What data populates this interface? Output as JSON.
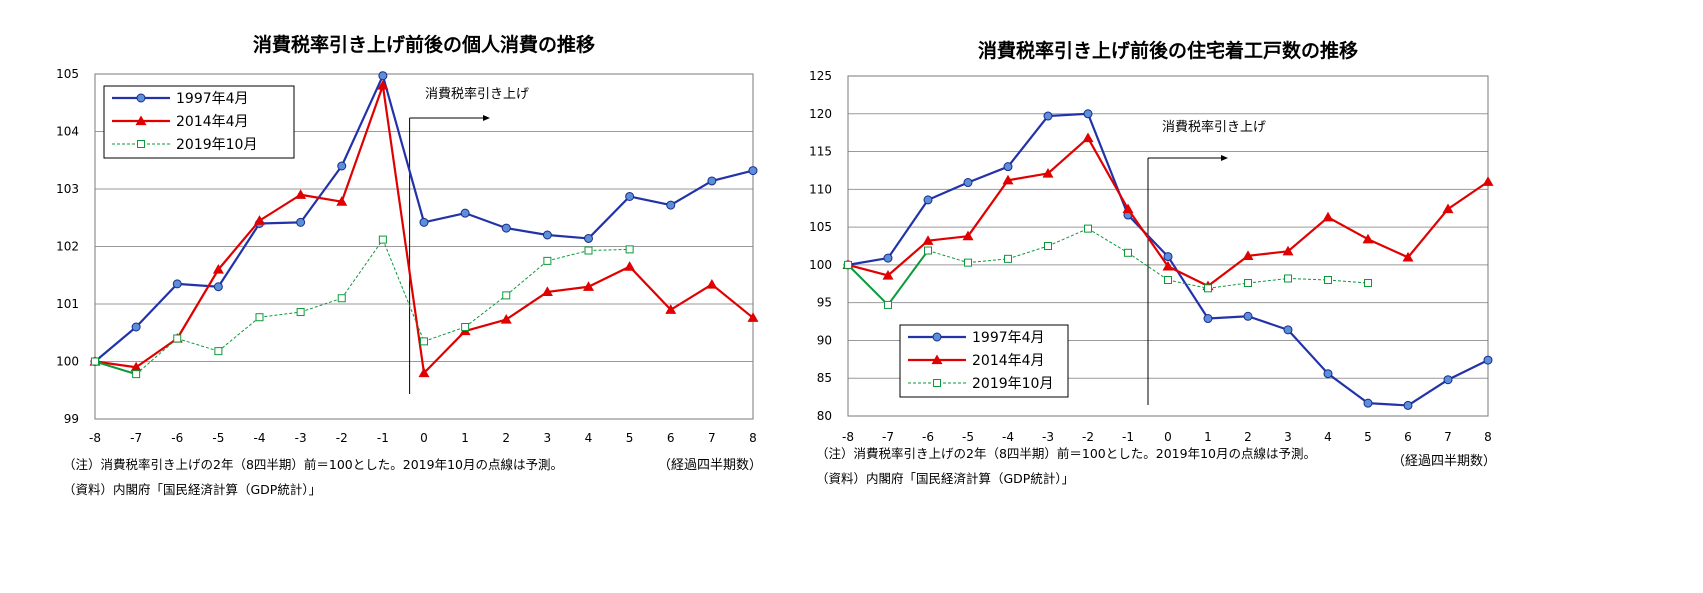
{
  "chart_data": [
    {
      "type": "line",
      "title": "消費税率引き上げ前後の個人消費の推移",
      "x": [
        -8,
        -7,
        -6,
        -5,
        -4,
        -3,
        -2,
        -1,
        0,
        1,
        2,
        3,
        4,
        5,
        6,
        7,
        8
      ],
      "x_tick_labels": [
        "-8",
        "-7",
        "-6",
        "-5",
        "-4",
        "-3",
        "-2",
        "-1",
        "0",
        "1",
        "2",
        "3",
        "4",
        "5",
        "6",
        "7",
        "8"
      ],
      "ylim": [
        99,
        105
      ],
      "y_ticks": [
        99,
        100,
        101,
        102,
        103,
        104,
        105
      ],
      "y_tick_labels": [
        "99",
        "100",
        "101",
        "102",
        "103",
        "104",
        "105"
      ],
      "grid": "horizontal",
      "legend": "top-left",
      "xlabel": "（経過四半期数）",
      "annotation": "消費税率引き上げ",
      "annotation_x": -0.35,
      "notes": [
        "（注）消費税率引き上げの2年（8四半期）前＝100とした。2019年10月の点線は予測。",
        "（資料）内閣府「国民経済計算（GDP統計）」"
      ],
      "series": [
        {
          "name": "1997年4月",
          "color": "#2233aa",
          "marker": "circle",
          "values": [
            100,
            100.6,
            101.35,
            101.3,
            102.4,
            102.42,
            103.4,
            104.97,
            102.42,
            102.58,
            102.32,
            102.2,
            102.14,
            102.87,
            102.72,
            103.14,
            103.32
          ]
        },
        {
          "name": "2014年4月",
          "color": "#e00000",
          "marker": "triangle",
          "values": [
            100,
            99.9,
            100.4,
            101.6,
            102.45,
            102.9,
            102.78,
            104.8,
            99.8,
            100.53,
            100.73,
            101.21,
            101.3,
            101.65,
            100.9,
            101.34,
            100.76
          ]
        },
        {
          "name": "2019年10月",
          "color": "#0a9a3a",
          "marker": "square",
          "dashed_from": 1,
          "values": [
            100,
            99.78,
            100.4,
            100.18,
            100.77,
            100.86,
            101.1,
            102.12,
            100.35,
            100.6,
            101.15,
            101.75,
            101.93,
            101.95,
            null,
            null,
            null
          ]
        }
      ]
    },
    {
      "type": "line",
      "title": "消費税率引き上げ前後の住宅着工戸数の推移",
      "x": [
        -8,
        -7,
        -6,
        -5,
        -4,
        -3,
        -2,
        -1,
        0,
        1,
        2,
        3,
        4,
        5,
        6,
        7,
        8
      ],
      "x_tick_labels": [
        "-8",
        "-7",
        "-6",
        "-5",
        "-4",
        "-3",
        "-2",
        "-1",
        "0",
        "1",
        "2",
        "3",
        "4",
        "5",
        "6",
        "7",
        "8"
      ],
      "ylim": [
        80,
        125
      ],
      "y_ticks": [
        80,
        85,
        90,
        95,
        100,
        105,
        110,
        115,
        120,
        125
      ],
      "y_tick_labels": [
        "80",
        "85",
        "90",
        "95",
        "100",
        "105",
        "110",
        "115",
        "120",
        "125"
      ],
      "grid": "horizontal",
      "legend": "bottom-left",
      "xlabel": "（経過四半期数）",
      "annotation": "消費税率引き上げ",
      "annotation_x": -0.5,
      "notes": [
        "（注）消費税率引き上げの2年（8四半期）前＝100とした。2019年10月の点線は予測。",
        "（資料）内閣府「国民経済計算（GDP統計）」"
      ],
      "series": [
        {
          "name": "1997年4月",
          "color": "#2233aa",
          "marker": "circle",
          "values": [
            100,
            100.9,
            108.6,
            110.9,
            113,
            119.7,
            120,
            106.6,
            101.1,
            92.9,
            93.2,
            91.4,
            85.6,
            81.7,
            81.4,
            84.8,
            87.4
          ]
        },
        {
          "name": "2014年4月",
          "color": "#e00000",
          "marker": "triangle",
          "values": [
            100,
            98.6,
            103.2,
            103.8,
            111.2,
            112.1,
            116.8,
            107.4,
            99.8,
            97.2,
            101.2,
            101.8,
            106.3,
            103.4,
            101,
            107.4,
            111
          ]
        },
        {
          "name": "2019年10月",
          "color": "#0a9a3a",
          "marker": "square",
          "dashed_from": 2,
          "values": [
            100,
            94.7,
            101.9,
            100.3,
            100.8,
            102.5,
            104.8,
            101.6,
            98.0,
            96.9,
            97.6,
            98.2,
            98.0,
            97.6,
            null,
            null,
            null
          ]
        }
      ]
    }
  ]
}
